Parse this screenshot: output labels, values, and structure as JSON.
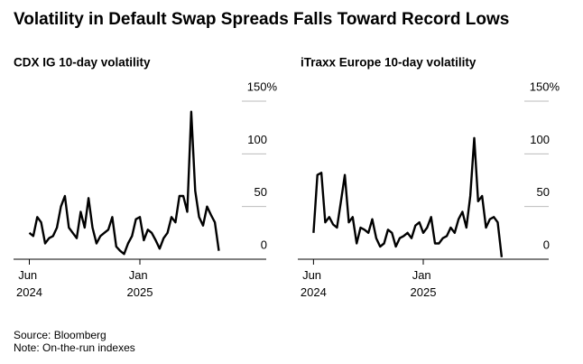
{
  "title": "Volatility in Default Swap Spreads Falls Toward Record Lows",
  "chart_data": [
    {
      "type": "line",
      "title": "CDX IG 10-day volatility",
      "color": "#000000",
      "x": [
        "2024-06",
        "2024-06",
        "2024-06",
        "2024-06",
        "2024-07",
        "2024-07",
        "2024-07",
        "2024-07",
        "2024-08",
        "2024-08",
        "2024-08",
        "2024-08",
        "2024-09",
        "2024-09",
        "2024-09",
        "2024-09",
        "2024-10",
        "2024-10",
        "2024-10",
        "2024-10",
        "2024-11",
        "2024-11",
        "2024-11",
        "2024-11",
        "2024-12",
        "2024-12",
        "2024-12",
        "2024-12",
        "2025-01",
        "2025-01",
        "2025-01",
        "2025-01",
        "2025-02",
        "2025-02",
        "2025-02",
        "2025-02",
        "2025-03",
        "2025-03",
        "2025-03",
        "2025-03",
        "2025-04",
        "2025-04",
        "2025-04",
        "2025-04",
        "2025-05",
        "2025-05",
        "2025-05",
        "2025-05",
        "2025-06"
      ],
      "values": [
        25,
        22,
        40,
        35,
        15,
        20,
        22,
        30,
        50,
        60,
        30,
        25,
        20,
        45,
        30,
        58,
        30,
        15,
        22,
        25,
        28,
        40,
        12,
        8,
        5,
        15,
        22,
        38,
        40,
        18,
        28,
        25,
        18,
        10,
        20,
        25,
        40,
        35,
        60,
        60,
        45,
        140,
        65,
        40,
        32,
        50,
        42,
        35,
        8
      ],
      "xlim": [
        "2024-05",
        "2025-09"
      ],
      "xticks": [
        {
          "value": "2024-06",
          "label": "Jun 2024"
        },
        {
          "value": "2025-01",
          "label": "Jan 2025"
        }
      ],
      "ylim": [
        0,
        150
      ],
      "yticks": [
        0,
        50,
        100,
        {
          "value": 150,
          "label": "150%"
        }
      ],
      "grid": true
    },
    {
      "type": "line",
      "title": "iTraxx Europe 10-day volatility",
      "color": "#000000",
      "x": [
        "2024-06",
        "2024-06",
        "2024-06",
        "2024-06",
        "2024-07",
        "2024-07",
        "2024-07",
        "2024-07",
        "2024-08",
        "2024-08",
        "2024-08",
        "2024-08",
        "2024-09",
        "2024-09",
        "2024-09",
        "2024-09",
        "2024-10",
        "2024-10",
        "2024-10",
        "2024-10",
        "2024-11",
        "2024-11",
        "2024-11",
        "2024-11",
        "2024-12",
        "2024-12",
        "2024-12",
        "2024-12",
        "2025-01",
        "2025-01",
        "2025-01",
        "2025-01",
        "2025-02",
        "2025-02",
        "2025-02",
        "2025-02",
        "2025-03",
        "2025-03",
        "2025-03",
        "2025-03",
        "2025-04",
        "2025-04",
        "2025-04",
        "2025-04",
        "2025-05",
        "2025-05",
        "2025-05",
        "2025-05",
        "2025-06"
      ],
      "values": [
        25,
        80,
        82,
        35,
        40,
        33,
        30,
        55,
        80,
        35,
        40,
        15,
        30,
        28,
        25,
        38,
        20,
        12,
        15,
        28,
        25,
        12,
        20,
        22,
        25,
        20,
        32,
        35,
        25,
        30,
        40,
        15,
        15,
        20,
        22,
        30,
        25,
        38,
        45,
        30,
        60,
        115,
        55,
        60,
        30,
        38,
        40,
        35,
        2
      ],
      "xlim": [
        "2024-05",
        "2025-09"
      ],
      "xticks": [
        {
          "value": "2024-06",
          "label": "Jun 2024"
        },
        {
          "value": "2025-01",
          "label": "Jan 2025"
        }
      ],
      "ylim": [
        0,
        150
      ],
      "yticks": [
        0,
        50,
        100,
        {
          "value": 150,
          "label": "150%"
        }
      ],
      "grid": true
    }
  ],
  "notes": [
    "Source: Bloomberg",
    "Note: On-the-run indexes"
  ]
}
